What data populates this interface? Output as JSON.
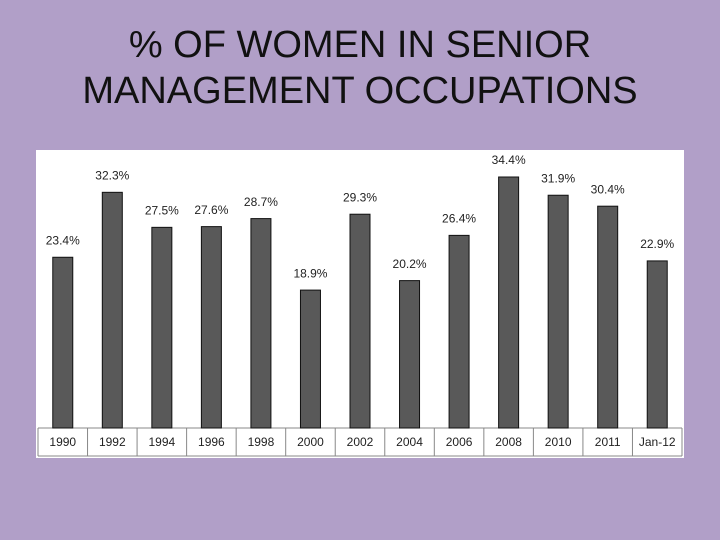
{
  "chart_data": {
    "type": "bar",
    "title": "% OF WOMEN IN SENIOR MANAGEMENT OCCUPATIONS",
    "categories": [
      "1990",
      "1992",
      "1994",
      "1996",
      "1998",
      "2000",
      "2002",
      "2004",
      "2006",
      "2008",
      "2010",
      "2011",
      "Jan-12"
    ],
    "values": [
      23.4,
      32.3,
      27.5,
      27.6,
      28.7,
      18.9,
      29.3,
      20.2,
      26.4,
      34.4,
      31.9,
      30.4,
      22.9
    ],
    "value_labels": [
      "23.4%",
      "32.3%",
      "27.5%",
      "27.6%",
      "28.7%",
      "18.9%",
      "29.3%",
      "20.2%",
      "26.4%",
      "34.4%",
      "31.9%",
      "30.4%",
      "22.9%"
    ],
    "color": "#595959"
  }
}
